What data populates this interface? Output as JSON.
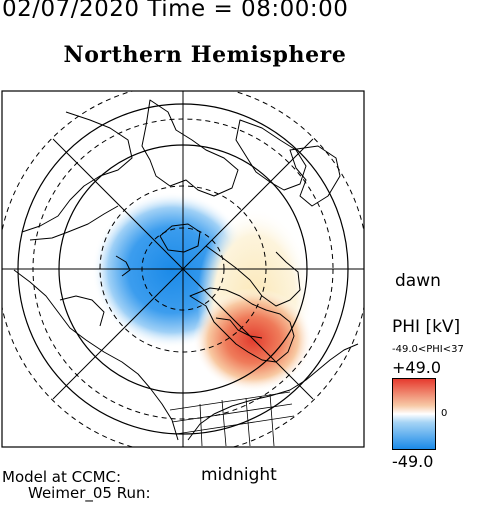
{
  "header": {
    "date_time": "02/07/2020 Time = 08:00:00",
    "hemisphere": "Northern Hemisphere"
  },
  "map": {
    "dawn_label": "dawn",
    "midnight_label": "midnight",
    "colors": {
      "negative_potential": "#1b8ae8",
      "positive_potential": "#e63a2e",
      "background": "#ffffff"
    }
  },
  "colorbar": {
    "title": "PHI [kV]",
    "range_text": "-49.0<PHI<37",
    "max_label": "+49.0",
    "mid_label": "0",
    "min_label": "-49.0"
  },
  "footer": {
    "model_label": "Model at CCMC:",
    "run_label": "Weimer_05 Run:"
  }
}
